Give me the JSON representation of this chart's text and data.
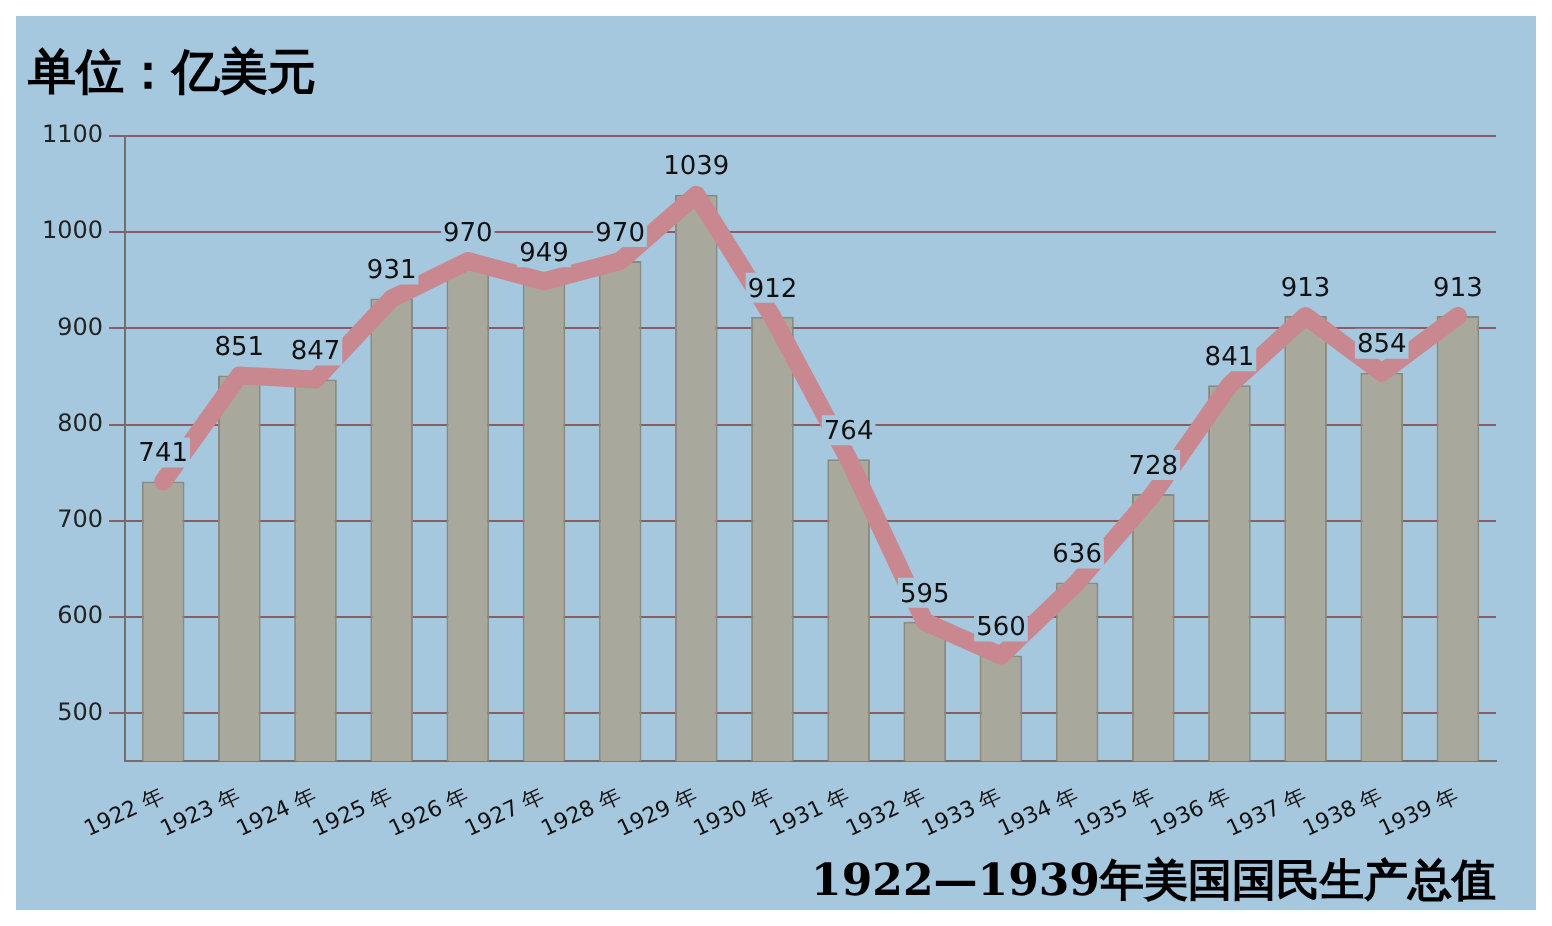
{
  "chart_data": {
    "type": "bar",
    "title": "1922—1939年美国国民生产总值",
    "annotations": [
      "单位：亿美元"
    ],
    "categories": [
      "1922 年",
      "1923 年",
      "1924 年",
      "1925 年",
      "1926 年",
      "1927 年",
      "1928 年",
      "1929 年",
      "1930 年",
      "1931 年",
      "1932 年",
      "1933 年",
      "1934 年",
      "1935 年",
      "1936 年",
      "1937 年",
      "1938 年",
      "1939 年"
    ],
    "series": [
      {
        "color": "#a9a89c",
        "values": [
          741,
          851,
          847,
          931,
          970,
          949,
          970,
          1039,
          912,
          764,
          595,
          560,
          636,
          728,
          841,
          913,
          854,
          913
        ]
      },
      {
        "type": "line",
        "color": "#c9878f",
        "values": [
          741,
          851,
          847,
          931,
          970,
          949,
          970,
          1039,
          912,
          764,
          595,
          560,
          636,
          728,
          841,
          913,
          854,
          913
        ],
        "value_labels": [
          "741",
          "851",
          "847",
          "931",
          "970",
          "949",
          "970",
          "1039",
          "912",
          "764",
          "595",
          "560",
          "636",
          "728",
          "841",
          "913",
          "854",
          "913"
        ]
      }
    ],
    "ylim": [
      450,
      1100
    ],
    "yticks": [
      500,
      600,
      700,
      800,
      900,
      1000,
      1100
    ],
    "grid": "y",
    "legend": false,
    "marker": "none"
  }
}
